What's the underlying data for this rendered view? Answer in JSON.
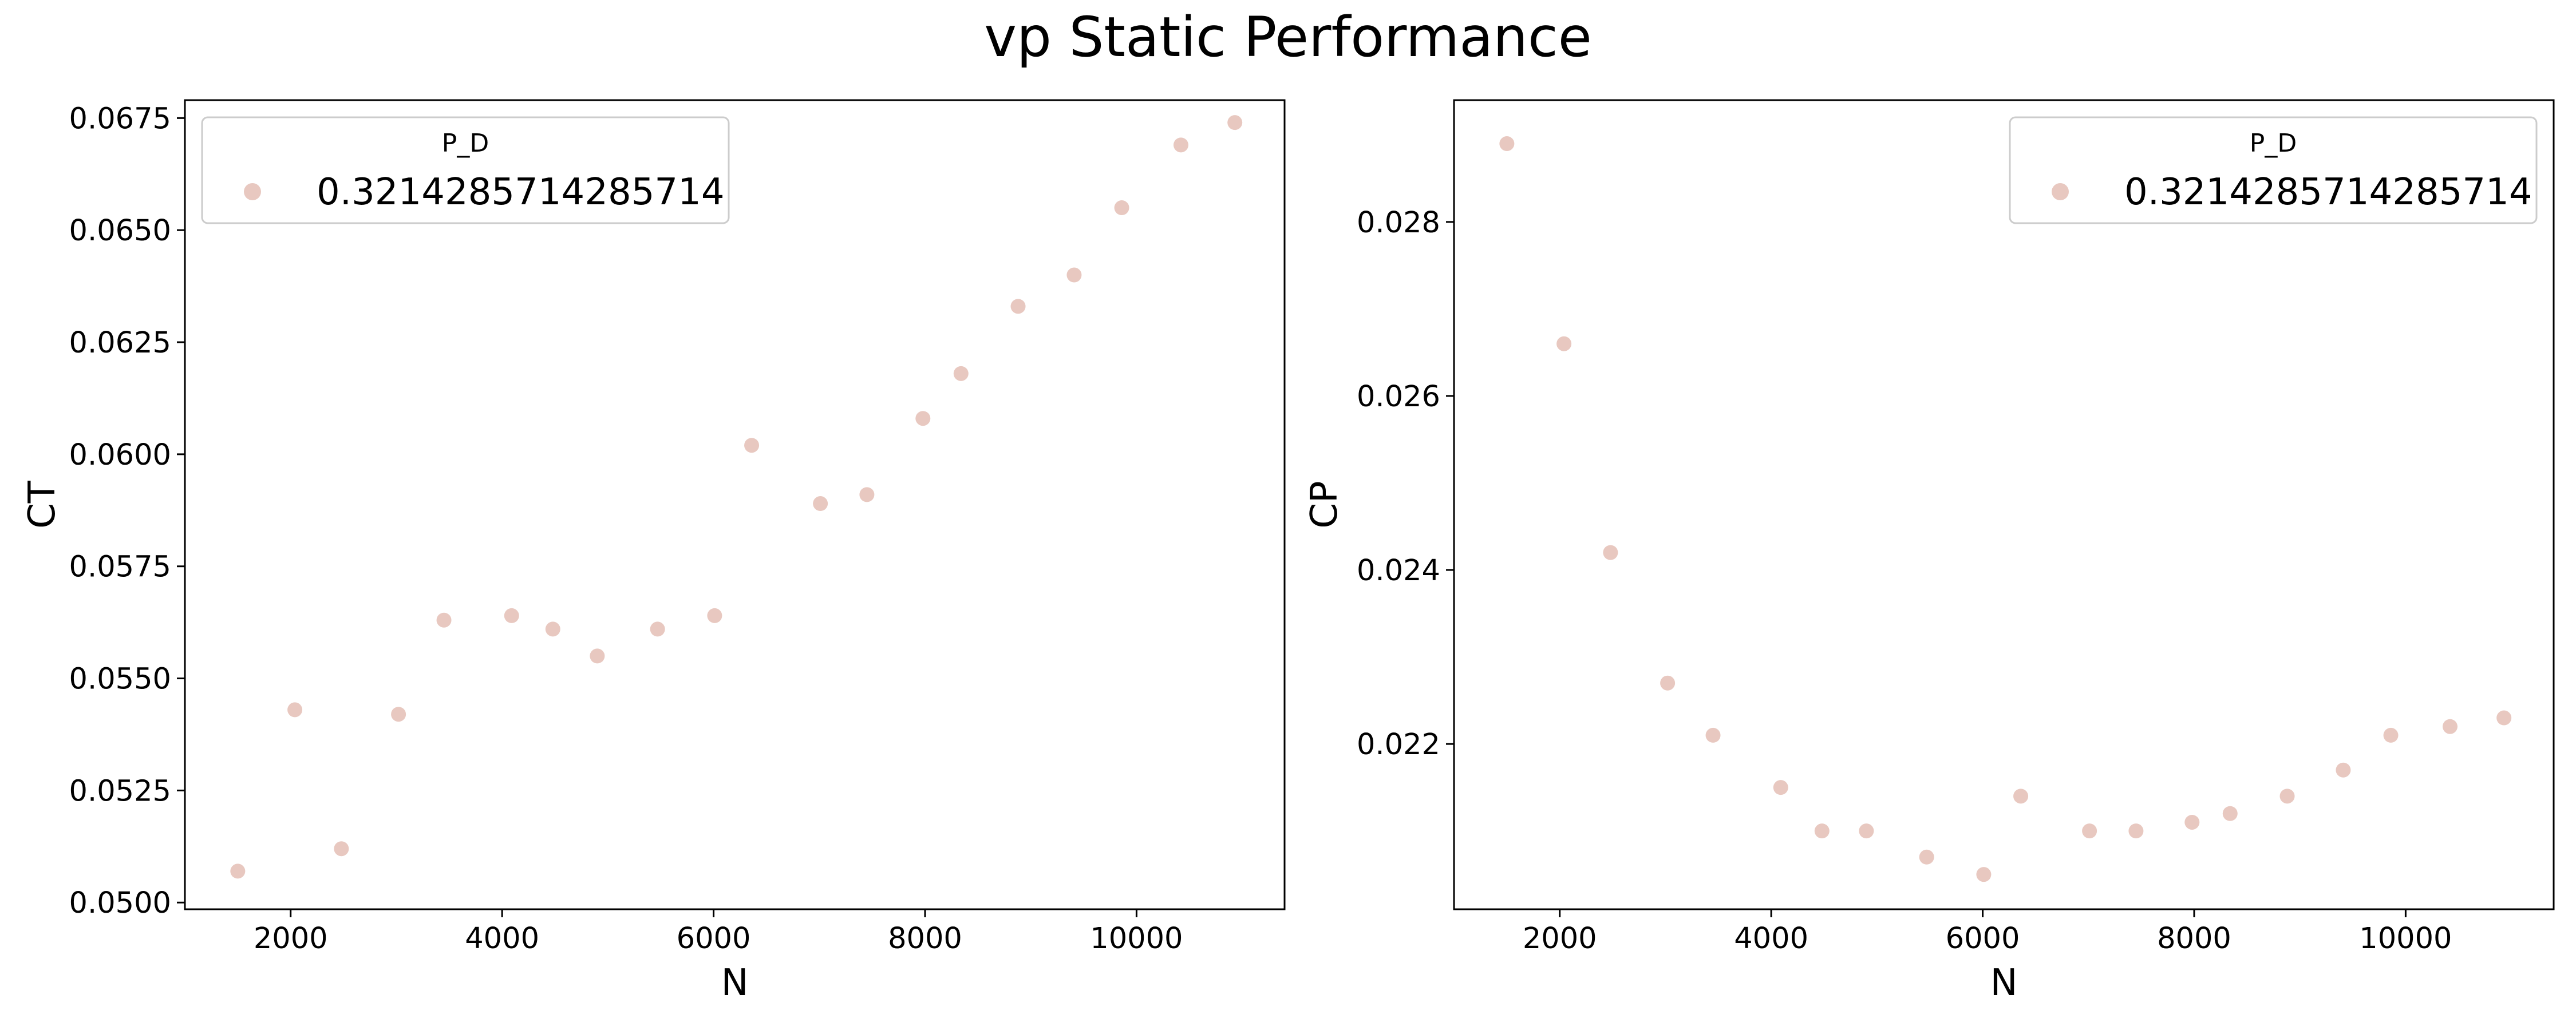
{
  "figure": {
    "title": "vp Static Performance"
  },
  "colors": {
    "marker": "#e8c8c0",
    "axes": "#000000",
    "legend_border": "#cccccc"
  },
  "chart_data": [
    {
      "type": "scatter",
      "xlabel": "N",
      "ylabel": "CT",
      "xlim": [
        1000,
        11400
      ],
      "ylim": [
        0.04985,
        0.0679
      ],
      "xticks": [
        2000,
        4000,
        6000,
        8000,
        10000
      ],
      "xtick_labels": [
        "2000",
        "4000",
        "6000",
        "8000",
        "10000"
      ],
      "yticks": [
        0.05,
        0.0525,
        0.055,
        0.0575,
        0.06,
        0.0625,
        0.065,
        0.0675
      ],
      "ytick_labels": [
        "0.0500",
        "0.0525",
        "0.0550",
        "0.0575",
        "0.0600",
        "0.0625",
        "0.0650",
        "0.0675"
      ],
      "grid": false,
      "legend": {
        "title": "P_D",
        "placement": "top-left",
        "entries": [
          "0.3214285714285714"
        ]
      },
      "series": [
        {
          "name": "0.3214285714285714",
          "x": [
            1500,
            2040,
            2480,
            3020,
            3450,
            4090,
            4480,
            4900,
            5470,
            6010,
            6360,
            7010,
            7450,
            7980,
            8340,
            8880,
            9410,
            9860,
            10420,
            10930
          ],
          "y": [
            0.0507,
            0.0543,
            0.0512,
            0.0542,
            0.0563,
            0.0564,
            0.0561,
            0.0555,
            0.0561,
            0.0564,
            0.0602,
            0.0589,
            0.0591,
            0.0608,
            0.0618,
            0.0633,
            0.064,
            0.0655,
            0.0669,
            0.0674
          ]
        }
      ]
    },
    {
      "type": "scatter",
      "xlabel": "N",
      "ylabel": "CP",
      "xlim": [
        1000,
        11400
      ],
      "ylim": [
        0.0201,
        0.0294
      ],
      "xticks": [
        2000,
        4000,
        6000,
        8000,
        10000
      ],
      "xtick_labels": [
        "2000",
        "4000",
        "6000",
        "8000",
        "10000"
      ],
      "yticks": [
        0.022,
        0.024,
        0.026,
        0.028
      ],
      "ytick_labels": [
        "0.022",
        "0.024",
        "0.026",
        "0.028"
      ],
      "grid": false,
      "legend": {
        "title": "P_D",
        "placement": "top-right",
        "entries": [
          "0.3214285714285714"
        ]
      },
      "series": [
        {
          "name": "0.3214285714285714",
          "x": [
            1500,
            2040,
            2480,
            3020,
            3450,
            4090,
            4480,
            4900,
            5470,
            6010,
            6360,
            7010,
            7450,
            7980,
            8340,
            8880,
            9410,
            9860,
            10420,
            10930
          ],
          "y": [
            0.0289,
            0.0266,
            0.0242,
            0.0227,
            0.0221,
            0.0215,
            0.021,
            0.021,
            0.0207,
            0.0205,
            0.0214,
            0.021,
            0.021,
            0.0211,
            0.0212,
            0.0214,
            0.0217,
            0.0221,
            0.0222,
            0.0223
          ]
        }
      ]
    }
  ]
}
